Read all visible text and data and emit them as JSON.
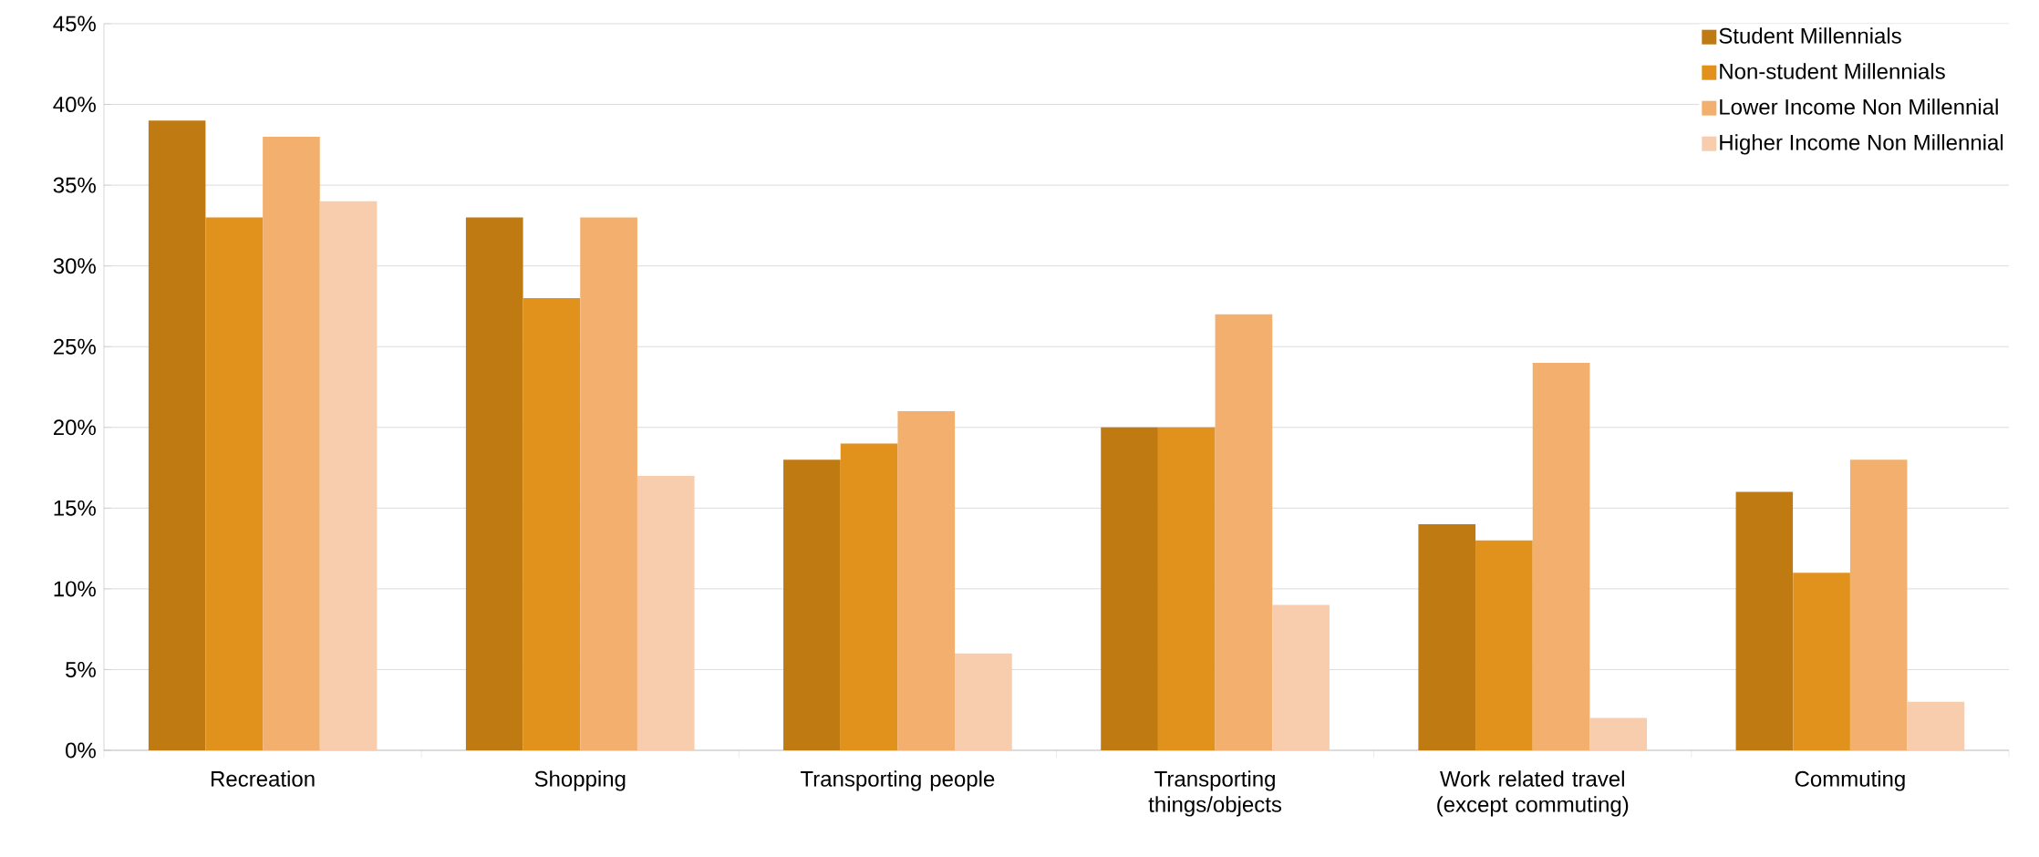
{
  "chart_data": {
    "type": "bar",
    "categories": [
      "Recreation",
      "Shopping",
      "Transporting people",
      "Transporting things/objects",
      "Work related travel (except commuting)",
      "Commuting"
    ],
    "series": [
      {
        "name": "Student Millennials",
        "color": "#c07a12",
        "values": [
          39,
          33,
          18,
          20,
          14,
          16
        ]
      },
      {
        "name": "Non-student Millennials",
        "color": "#e0921c",
        "values": [
          33,
          28,
          19,
          20,
          13,
          11
        ]
      },
      {
        "name": "Lower Income Non Millennial",
        "color": "#f3af6e",
        "values": [
          38,
          33,
          21,
          27,
          24,
          18
        ]
      },
      {
        "name": "Higher Income Non Millennial",
        "color": "#f7cdae",
        "values": [
          34,
          17,
          6,
          9,
          2,
          3
        ]
      }
    ],
    "ylim": [
      0,
      45
    ],
    "yticks": [
      {
        "value": 0,
        "label": "0%"
      },
      {
        "value": 5,
        "label": "5%"
      },
      {
        "value": 10,
        "label": "10%"
      },
      {
        "value": 15,
        "label": "15%"
      },
      {
        "value": 20,
        "label": "20%"
      },
      {
        "value": 25,
        "label": "25%"
      },
      {
        "value": 30,
        "label": "30%"
      },
      {
        "value": 35,
        "label": "35%"
      },
      {
        "value": 40,
        "label": "40%"
      },
      {
        "value": 45,
        "label": "45%"
      }
    ],
    "grid": "y",
    "legend": "top right"
  }
}
